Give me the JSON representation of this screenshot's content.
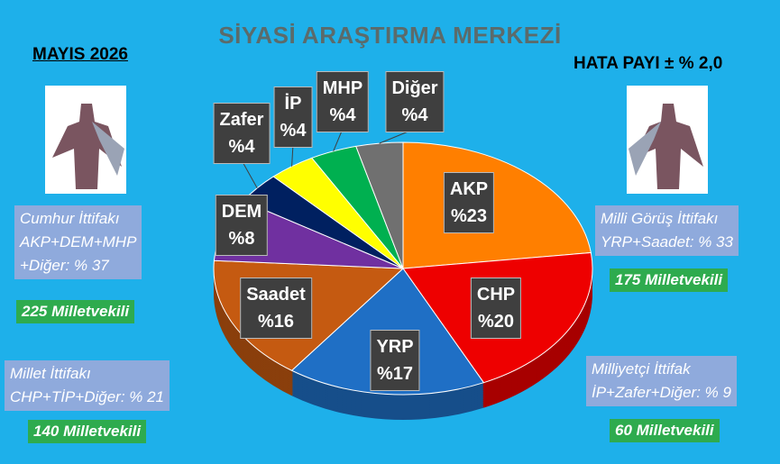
{
  "chart_data": {
    "type": "pie",
    "title": "SİYASİ ARAŞTIRMA MERKEZİ",
    "date": "MAYIS 2026",
    "margin_of_error": "HATA PAYI ± % 2,0",
    "categories": [
      "AKP",
      "CHP",
      "YRP",
      "Saadet",
      "DEM",
      "Zafer",
      "İP",
      "MHP",
      "Diğer"
    ],
    "values": [
      23,
      20,
      17,
      16,
      8,
      4,
      4,
      4,
      4
    ],
    "value_labels": [
      "%23",
      "%20",
      "%17",
      "%16",
      "%8",
      "%4",
      "%4",
      "%4",
      "%4"
    ],
    "colors": [
      "#ff7f00",
      "#ee0000",
      "#1f6fc5",
      "#c55a11",
      "#7030a0",
      "#002060",
      "#ffff00",
      "#00b050",
      "#707070"
    ],
    "alliances": [
      {
        "lines": [
          "Cumhur İttifakı",
          "AKP+DEM+MHP",
          "+Diğer: % 37"
        ],
        "seats": "225 Milletvekili"
      },
      {
        "lines": [
          "Millet İttifakı",
          "CHP+TİP+Diğer: % 21"
        ],
        "seats": "140 Milletvekili"
      },
      {
        "lines": [
          "Milli Görüş İttifakı",
          "YRP+Saadet: % 33"
        ],
        "seats": "175 Milletvekili"
      },
      {
        "lines": [
          "Milliyetçi İttifak",
          "İP+Zafer+Diğer: % 9"
        ],
        "seats": "60 Milletvekili"
      }
    ]
  }
}
